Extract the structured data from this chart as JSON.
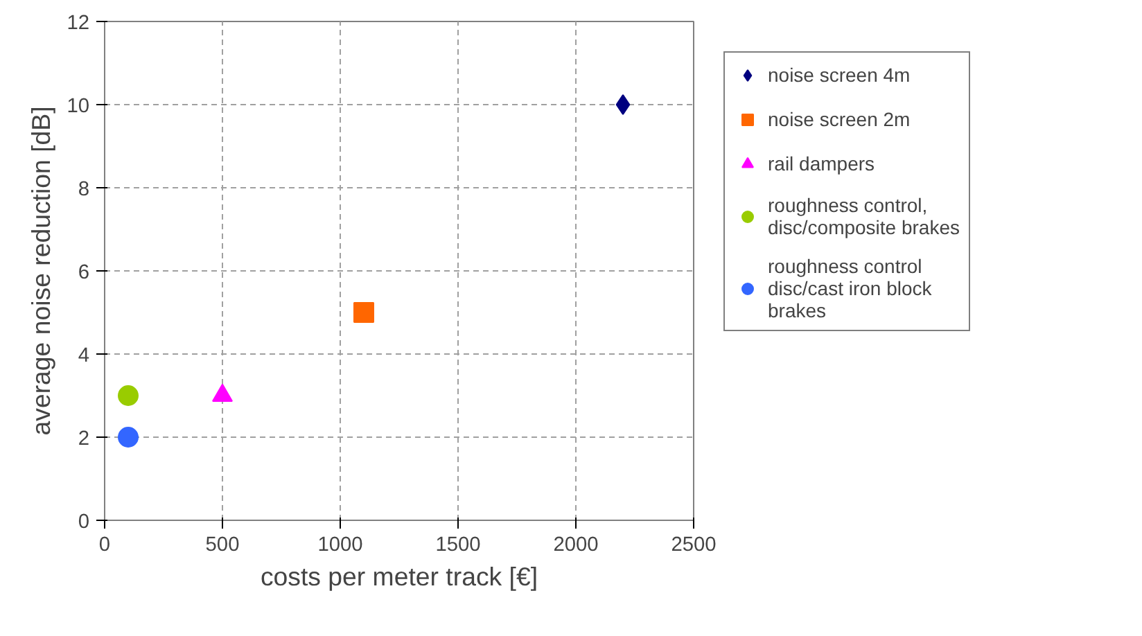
{
  "chart_data": {
    "type": "scatter",
    "xlabel": "costs per meter track [€]",
    "ylabel": "average noise reduction [dB]",
    "xlim": [
      0,
      2500
    ],
    "xticks": [
      0,
      500,
      1000,
      1500,
      2000,
      2500
    ],
    "ylim": [
      0,
      12
    ],
    "yticks": [
      0,
      2,
      4,
      6,
      8,
      10,
      12
    ],
    "grid": true,
    "legend": "right",
    "series": [
      {
        "name": "noise screen 4m",
        "color": "#000080",
        "marker": "diamond",
        "x": [
          2200
        ],
        "values": [
          10
        ]
      },
      {
        "name": "noise screen 2m",
        "color": "#ff6600",
        "marker": "square",
        "x": [
          1100
        ],
        "values": [
          5
        ]
      },
      {
        "name": "rail dampers",
        "color": "#ff00ff",
        "marker": "triangle",
        "x": [
          500
        ],
        "values": [
          3
        ]
      },
      {
        "name": "roughness control, disc/composite brakes",
        "color": "#99cc00",
        "marker": "circle",
        "x": [
          100
        ],
        "values": [
          3
        ]
      },
      {
        "name": "roughness control disc/cast iron block brakes",
        "color": "#3366ff",
        "marker": "circle",
        "x": [
          100
        ],
        "values": [
          2
        ]
      }
    ]
  }
}
